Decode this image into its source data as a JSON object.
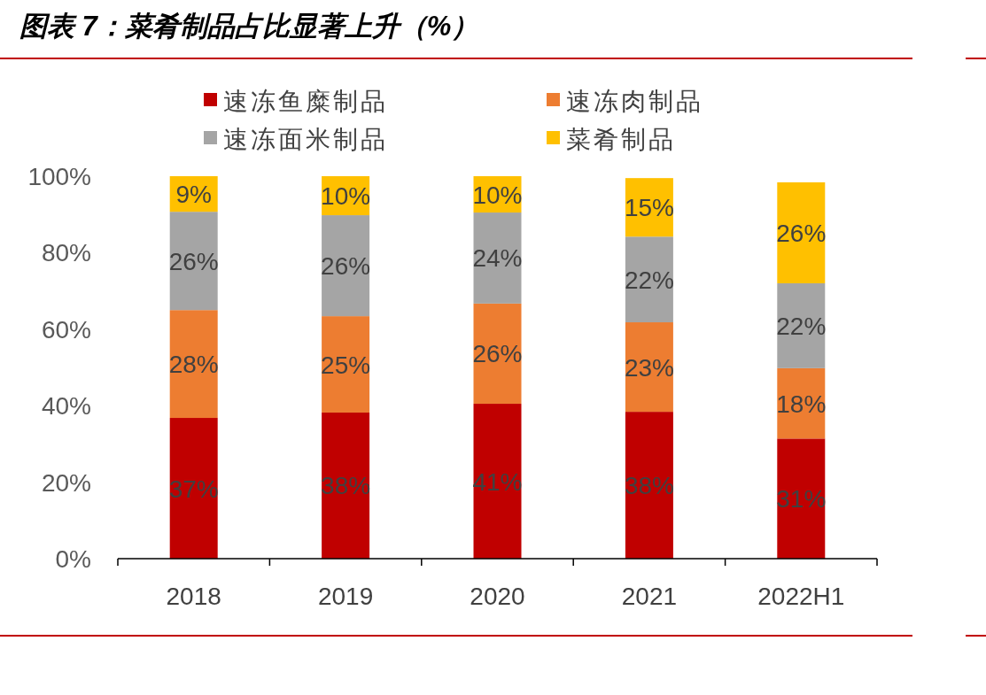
{
  "chart_data": {
    "type": "bar",
    "title": "图表 7：菜肴制品占比显著上升（%）",
    "categories": [
      "2018",
      "2019",
      "2020",
      "2021",
      "2022H1"
    ],
    "series": [
      {
        "name": "速冻鱼糜制品",
        "color": "#c00000",
        "values": [
          36.8,
          38.2,
          40.5,
          38.4,
          31.4
        ],
        "value_labels": [
          "37%",
          "38%",
          "41%",
          "38%",
          "31%"
        ]
      },
      {
        "name": "速冻肉制品",
        "color": "#ed7d31",
        "values": [
          28.2,
          25.2,
          26.2,
          23.4,
          18.4
        ],
        "value_labels": [
          "28%",
          "25%",
          "26%",
          "23%",
          "18%"
        ]
      },
      {
        "name": "速冻面米制品",
        "color": "#a5a5a5",
        "values": [
          25.7,
          26.4,
          23.8,
          22.4,
          22.2
        ],
        "value_labels": [
          "26%",
          "26%",
          "24%",
          "22%",
          "22%"
        ]
      },
      {
        "name": "菜肴制品",
        "color": "#ffc000",
        "values": [
          9.3,
          10.2,
          9.5,
          15.3,
          26.4
        ],
        "value_labels": [
          "9%",
          "10%",
          "10%",
          "15%",
          "26%"
        ]
      }
    ],
    "stacked": true,
    "legend": "top",
    "grid": false,
    "ylim": [
      0,
      100
    ],
    "yticks": [
      {
        "value": 0,
        "label": "0%"
      },
      {
        "value": 20,
        "label": "20%"
      },
      {
        "value": 40,
        "label": "40%"
      },
      {
        "value": 60,
        "label": "60%"
      },
      {
        "value": 80,
        "label": "80%"
      },
      {
        "value": 100,
        "label": "100%"
      }
    ]
  }
}
